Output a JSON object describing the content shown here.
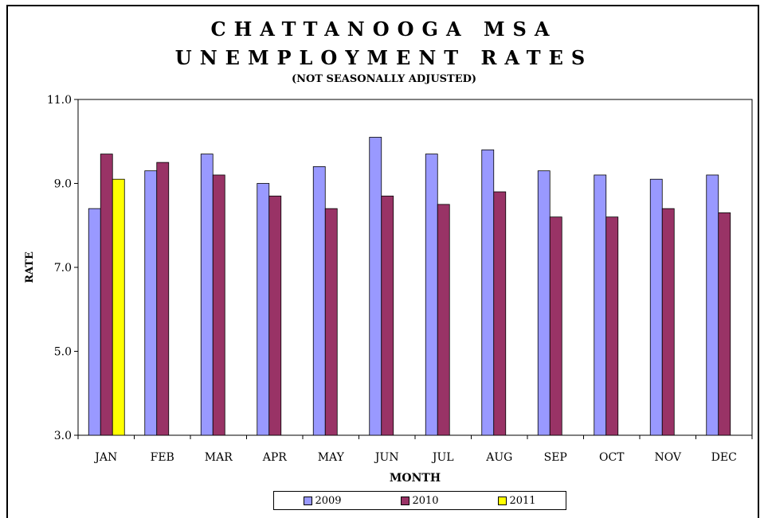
{
  "chart_data": {
    "type": "bar",
    "title_line1": "CHATTANOOGA MSA",
    "title_line2": "UNEMPLOYMENT RATES",
    "subtitle": "(NOT SEASONALLY ADJUSTED)",
    "xlabel": "MONTH",
    "ylabel": "RATE",
    "ylim": [
      3.0,
      11.0
    ],
    "yticks": [
      "3.0",
      "5.0",
      "7.0",
      "9.0",
      "11.0"
    ],
    "ytick_values": [
      3,
      5,
      7,
      9,
      11
    ],
    "categories": [
      "JAN",
      "FEB",
      "MAR",
      "APR",
      "MAY",
      "JUN",
      "JUL",
      "AUG",
      "SEP",
      "OCT",
      "NOV",
      "DEC"
    ],
    "series": [
      {
        "name": "2009",
        "color": "#9999ff",
        "values": [
          8.4,
          9.3,
          9.7,
          9.0,
          9.4,
          10.1,
          9.7,
          9.8,
          9.3,
          9.2,
          9.1,
          9.2
        ]
      },
      {
        "name": "2010",
        "color": "#993366",
        "values": [
          9.7,
          9.5,
          9.2,
          8.7,
          8.4,
          8.7,
          8.5,
          8.8,
          8.2,
          8.2,
          8.4,
          8.3
        ]
      },
      {
        "name": "2011",
        "color": "#ffff00",
        "values": [
          9.1,
          null,
          null,
          null,
          null,
          null,
          null,
          null,
          null,
          null,
          null,
          null
        ]
      }
    ],
    "grid": false,
    "legend_position": "bottom"
  }
}
